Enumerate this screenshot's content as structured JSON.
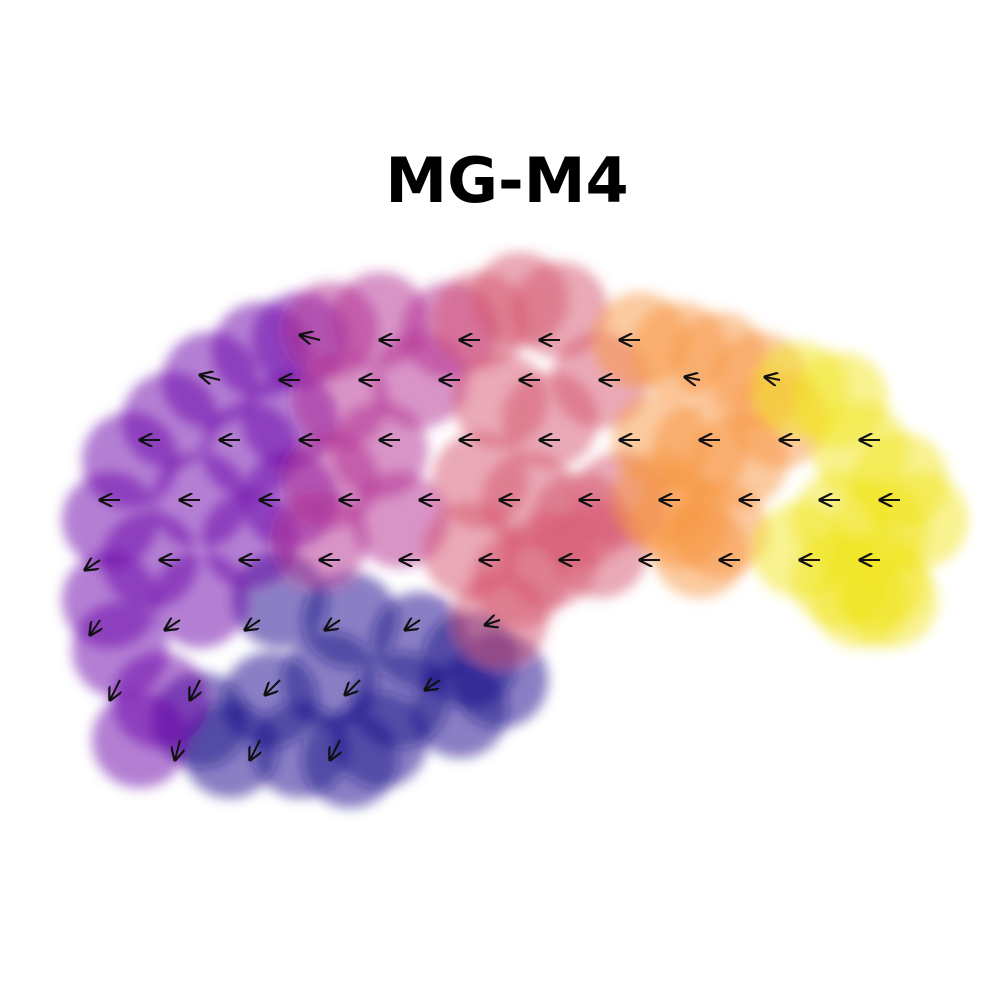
{
  "chart_data": {
    "type": "scatter",
    "title": "MG-M4",
    "xlim": [
      0,
      100
    ],
    "ylim": [
      0,
      100
    ],
    "series": [
      {
        "color": "#1a0a8a",
        "x": [
          28,
          35,
          42,
          47,
          50,
          33,
          40,
          46,
          27,
          30,
          35,
          23,
          20,
          38
        ],
        "values": [
          40,
          38,
          36,
          34,
          32,
          32,
          30,
          29,
          30,
          25,
          24,
          25,
          28,
          26
        ]
      },
      {
        "color": "#6a00a8",
        "x": [
          11,
          11,
          13,
          17,
          21,
          26,
          30,
          15,
          20,
          25,
          29,
          12,
          16,
          20,
          25,
          29,
          14
        ],
        "values": [
          40,
          48,
          54,
          58,
          62,
          65,
          66,
          44,
          50,
          55,
          58,
          35,
          30,
          40,
          46,
          50,
          26
        ]
      },
      {
        "color": "#b12a90",
        "x": [
          33,
          38,
          34,
          33,
          32,
          38,
          40,
          42,
          45
        ],
        "values": [
          67,
          68,
          60,
          52,
          46,
          55,
          48,
          62,
          67
        ]
      },
      {
        "color": "#d5546e",
        "x": [
          48,
          52,
          56,
          50,
          55,
          60,
          48,
          53,
          58,
          62,
          47,
          52,
          50,
          55,
          60
        ],
        "values": [
          68,
          70,
          69,
          60,
          58,
          62,
          52,
          50,
          48,
          50,
          45,
          42,
          38,
          44,
          45
        ]
      },
      {
        "color": "#f89540",
        "x": [
          64,
          68,
          72,
          76,
          66,
          70,
          74,
          68,
          72,
          66,
          78,
          70
        ],
        "values": [
          66,
          65,
          64,
          62,
          56,
          55,
          54,
          48,
          47,
          50,
          58,
          45
        ]
      },
      {
        "color": "#f2e61f",
        "x": [
          80,
          84,
          86,
          90,
          88,
          92,
          84,
          80,
          84,
          88,
          86,
          89
        ],
        "values": [
          61,
          60,
          55,
          52,
          47,
          48,
          48,
          45,
          42,
          42,
          40,
          40
        ]
      }
    ],
    "velocity": {
      "x": [
        32,
        40,
        48,
        56,
        64,
        22,
        30,
        38,
        46,
        54,
        62,
        70,
        78,
        16,
        24,
        32,
        40,
        48,
        56,
        64,
        72,
        80,
        88,
        12,
        20,
        28,
        36,
        44,
        52,
        60,
        68,
        76,
        84,
        90,
        10,
        18,
        26,
        34,
        42,
        50,
        58,
        66,
        74,
        82,
        88,
        10,
        18,
        26,
        34,
        42,
        50,
        12,
        20,
        28,
        36,
        44,
        18,
        26,
        34
      ],
      "y": [
        66,
        66,
        66,
        66,
        66,
        62,
        62,
        62,
        62,
        62,
        62,
        62,
        62,
        56,
        56,
        56,
        56,
        56,
        56,
        56,
        56,
        56,
        56,
        50,
        50,
        50,
        50,
        50,
        50,
        50,
        50,
        50,
        50,
        50,
        44,
        44,
        44,
        44,
        44,
        44,
        44,
        44,
        44,
        44,
        44,
        38,
        38,
        38,
        38,
        38,
        38,
        32,
        32,
        32,
        32,
        32,
        26,
        26,
        26
      ],
      "u": [
        -2,
        -2,
        -2,
        -2,
        -2,
        -2,
        -2,
        -2,
        -2,
        -2,
        -2,
        -1.5,
        -1.5,
        -2,
        -2,
        -2,
        -2,
        -2,
        -2,
        -2,
        -2,
        -2,
        -2,
        -2,
        -2,
        -2,
        -2,
        -2,
        -2,
        -2,
        -2,
        -2,
        -2,
        -2,
        -1.5,
        -2,
        -2,
        -2,
        -2,
        -2,
        -2,
        -2,
        -2,
        -2,
        -2,
        -1,
        -1.5,
        -1.5,
        -1.5,
        -1.5,
        -1.5,
        -1,
        -1,
        -1.5,
        -1.5,
        -1.5,
        -0.5,
        -1,
        -1
      ],
      "v": [
        0.5,
        0,
        0,
        0,
        0,
        0.5,
        0,
        0,
        0,
        0,
        0,
        0.3,
        0.3,
        0,
        0,
        0,
        0,
        0,
        0,
        0,
        0,
        0,
        0,
        0,
        0,
        0,
        0,
        0,
        0,
        0,
        0,
        0,
        0,
        0,
        -1,
        0,
        0,
        0,
        0,
        0,
        0,
        0,
        0,
        0,
        0,
        -1.5,
        -1,
        -1,
        -1,
        -1,
        -0.5,
        -2,
        -2,
        -1.5,
        -1.5,
        -1,
        -2,
        -2,
        -2
      ]
    }
  }
}
